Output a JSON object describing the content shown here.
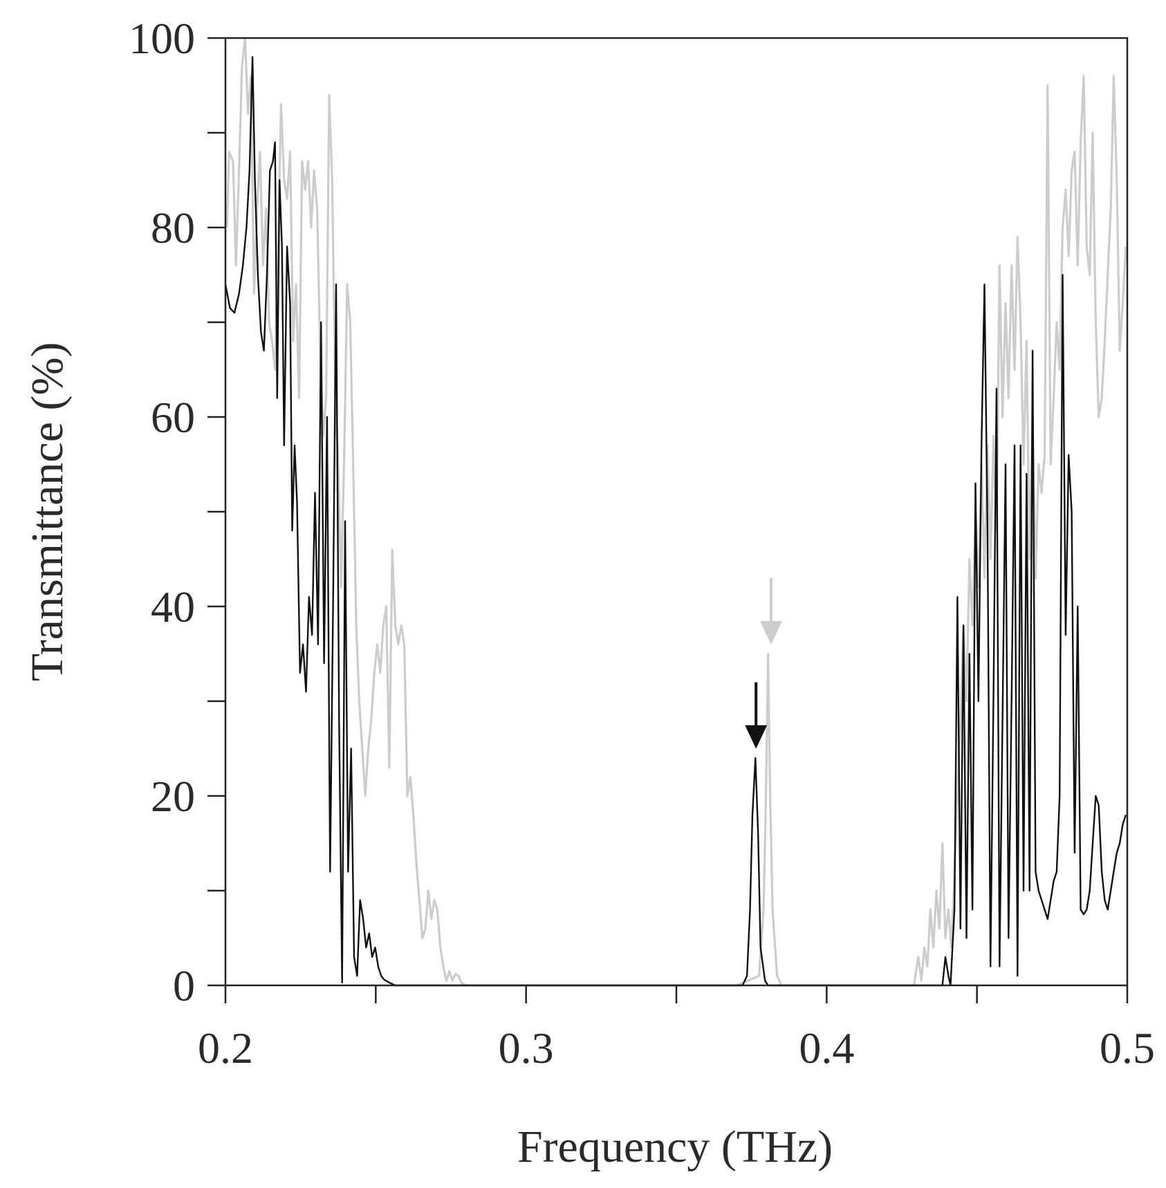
{
  "chart_data": {
    "type": "line",
    "xlabel": "Frequency (THz)",
    "ylabel": "Transmittance (%)",
    "xlim": [
      0.2,
      0.5
    ],
    "ylim": [
      0,
      100
    ],
    "x_ticks": [
      "0.2",
      "0.3",
      "0.4",
      "0.5"
    ],
    "x_tick_values": [
      0.2,
      0.3,
      0.4,
      0.5
    ],
    "x_minor_ticks": [
      0.25,
      0.35,
      0.45
    ],
    "y_ticks": [
      "0",
      "20",
      "40",
      "60",
      "80",
      "100"
    ],
    "y_tick_values": [
      0,
      20,
      40,
      60,
      80,
      100
    ],
    "y_minor_ticks": [
      10,
      30,
      50,
      70,
      90
    ],
    "grid": false,
    "legend": "none",
    "series": [
      {
        "color": "#cccccc",
        "points": [
          [
            0.2005,
            80.0
          ],
          [
            0.2012,
            88.0
          ],
          [
            0.2025,
            87.0
          ],
          [
            0.2035,
            76.0
          ],
          [
            0.2045,
            86.0
          ],
          [
            0.2055,
            97.0
          ],
          [
            0.2065,
            100.0
          ],
          [
            0.2075,
            92.0
          ],
          [
            0.2085,
            96.0
          ],
          [
            0.2095,
            73.0
          ],
          [
            0.2105,
            82.0
          ],
          [
            0.2115,
            88.0
          ],
          [
            0.2125,
            76.0
          ],
          [
            0.2135,
            82.0
          ],
          [
            0.2145,
            70.0
          ],
          [
            0.2155,
            68.0
          ],
          [
            0.2165,
            65.0
          ],
          [
            0.2175,
            78.0
          ],
          [
            0.2185,
            93.0
          ],
          [
            0.2195,
            85.0
          ],
          [
            0.2205,
            83.0
          ],
          [
            0.2215,
            88.0
          ],
          [
            0.2225,
            68.0
          ],
          [
            0.2235,
            74.0
          ],
          [
            0.2245,
            62.0
          ],
          [
            0.2255,
            87.0
          ],
          [
            0.2265,
            84.0
          ],
          [
            0.2275,
            87.0
          ],
          [
            0.2285,
            80.0
          ],
          [
            0.2295,
            86.0
          ],
          [
            0.2305,
            82.0
          ],
          [
            0.2315,
            67.0
          ],
          [
            0.2325,
            58.0
          ],
          [
            0.2335,
            62.0
          ],
          [
            0.2345,
            94.0
          ],
          [
            0.2355,
            85.0
          ],
          [
            0.2365,
            63.0
          ],
          [
            0.2375,
            55.0
          ],
          [
            0.2385,
            42.0
          ],
          [
            0.2395,
            56.0
          ],
          [
            0.2405,
            74.0
          ],
          [
            0.2415,
            70.0
          ],
          [
            0.2425,
            55.0
          ],
          [
            0.2435,
            38.0
          ],
          [
            0.2445,
            30.0
          ],
          [
            0.2455,
            25.0
          ],
          [
            0.2465,
            20.0
          ],
          [
            0.2475,
            25.0
          ],
          [
            0.2485,
            28.0
          ],
          [
            0.2495,
            33.0
          ],
          [
            0.2505,
            36.0
          ],
          [
            0.2515,
            33.0
          ],
          [
            0.2525,
            38.0
          ],
          [
            0.2535,
            40.0
          ],
          [
            0.2545,
            23.0
          ],
          [
            0.2555,
            46.0
          ],
          [
            0.2565,
            38.0
          ],
          [
            0.2575,
            36.0
          ],
          [
            0.2585,
            38.0
          ],
          [
            0.2595,
            36.0
          ],
          [
            0.2605,
            20.0
          ],
          [
            0.2615,
            22.0
          ],
          [
            0.2625,
            18.0
          ],
          [
            0.2635,
            13.0
          ],
          [
            0.2645,
            9.0
          ],
          [
            0.2655,
            5.0
          ],
          [
            0.2665,
            6.0
          ],
          [
            0.2675,
            10.0
          ],
          [
            0.2685,
            7.0
          ],
          [
            0.2695,
            9.0
          ],
          [
            0.2705,
            8.0
          ],
          [
            0.2715,
            4.0
          ],
          [
            0.2725,
            2.0
          ],
          [
            0.2735,
            0.5
          ],
          [
            0.2745,
            1.5
          ],
          [
            0.2755,
            0.5
          ],
          [
            0.2765,
            1.2
          ],
          [
            0.2775,
            1.0
          ],
          [
            0.2785,
            0.3
          ],
          [
            0.28,
            0.0
          ],
          [
            0.37,
            0.0
          ],
          [
            0.3775,
            1.0
          ],
          [
            0.379,
            8.0
          ],
          [
            0.3798,
            20.0
          ],
          [
            0.3805,
            35.0
          ],
          [
            0.3812,
            20.0
          ],
          [
            0.382,
            8.0
          ],
          [
            0.3835,
            1.0
          ],
          [
            0.385,
            0.0
          ],
          [
            0.429,
            0.0
          ],
          [
            0.4305,
            3.0
          ],
          [
            0.4315,
            0.5
          ],
          [
            0.4325,
            4.0
          ],
          [
            0.4335,
            2.0
          ],
          [
            0.4345,
            8.0
          ],
          [
            0.4355,
            4.0
          ],
          [
            0.4365,
            10.0
          ],
          [
            0.4375,
            6.0
          ],
          [
            0.4385,
            15.0
          ],
          [
            0.4395,
            5.0
          ],
          [
            0.4405,
            8.0
          ],
          [
            0.4415,
            4.0
          ],
          [
            0.4425,
            12.0
          ],
          [
            0.4435,
            20.0
          ],
          [
            0.4445,
            28.0
          ],
          [
            0.4455,
            38.0
          ],
          [
            0.4465,
            30.0
          ],
          [
            0.4475,
            45.0
          ],
          [
            0.4485,
            38.0
          ],
          [
            0.4495,
            50.0
          ],
          [
            0.4505,
            42.0
          ],
          [
            0.4515,
            55.0
          ],
          [
            0.4525,
            43.0
          ],
          [
            0.4535,
            57.0
          ],
          [
            0.4545,
            45.0
          ],
          [
            0.4555,
            58.0
          ],
          [
            0.4565,
            48.0
          ],
          [
            0.4575,
            76.0
          ],
          [
            0.4585,
            60.0
          ],
          [
            0.4595,
            72.0
          ],
          [
            0.4605,
            62.0
          ],
          [
            0.4615,
            76.0
          ],
          [
            0.4625,
            65.0
          ],
          [
            0.4635,
            79.0
          ],
          [
            0.4645,
            70.0
          ],
          [
            0.4655,
            55.0
          ],
          [
            0.4665,
            68.0
          ],
          [
            0.4675,
            45.0
          ],
          [
            0.4685,
            60.0
          ],
          [
            0.4695,
            43.0
          ],
          [
            0.4705,
            55.0
          ],
          [
            0.4715,
            52.0
          ],
          [
            0.4725,
            56.0
          ],
          [
            0.4735,
            95.0
          ],
          [
            0.4745,
            55.0
          ],
          [
            0.4755,
            62.0
          ],
          [
            0.4765,
            70.0
          ],
          [
            0.4775,
            65.0
          ],
          [
            0.4785,
            80.0
          ],
          [
            0.4795,
            84.0
          ],
          [
            0.4805,
            77.0
          ],
          [
            0.4815,
            86.0
          ],
          [
            0.4825,
            88.0
          ],
          [
            0.4835,
            76.0
          ],
          [
            0.4845,
            89.0
          ],
          [
            0.4855,
            96.0
          ],
          [
            0.4865,
            78.0
          ],
          [
            0.4875,
            75.0
          ],
          [
            0.4885,
            90.0
          ],
          [
            0.4895,
            70.0
          ],
          [
            0.4905,
            60.0
          ],
          [
            0.4915,
            62.0
          ],
          [
            0.4925,
            68.0
          ],
          [
            0.4935,
            75.0
          ],
          [
            0.4945,
            82.0
          ],
          [
            0.4955,
            96.0
          ],
          [
            0.4965,
            85.0
          ],
          [
            0.4975,
            67.0
          ],
          [
            0.4985,
            72.0
          ],
          [
            0.4995,
            78.0
          ]
        ]
      },
      {
        "color": "#111111",
        "points": [
          [
            0.2,
            74.0
          ],
          [
            0.2015,
            71.5
          ],
          [
            0.203,
            71.0
          ],
          [
            0.2045,
            73.0
          ],
          [
            0.2058,
            76.0
          ],
          [
            0.207,
            80.0
          ],
          [
            0.208,
            86.0
          ],
          [
            0.209,
            98.0
          ],
          [
            0.2098,
            85.0
          ],
          [
            0.2108,
            75.0
          ],
          [
            0.2118,
            69.0
          ],
          [
            0.2128,
            67.0
          ],
          [
            0.2138,
            75.0
          ],
          [
            0.2148,
            86.0
          ],
          [
            0.2158,
            87.0
          ],
          [
            0.2165,
            89.0
          ],
          [
            0.2172,
            62.0
          ],
          [
            0.218,
            85.0
          ],
          [
            0.2188,
            78.0
          ],
          [
            0.2195,
            57.0
          ],
          [
            0.2205,
            78.0
          ],
          [
            0.2215,
            72.0
          ],
          [
            0.2222,
            48.0
          ],
          [
            0.223,
            57.0
          ],
          [
            0.2238,
            51.0
          ],
          [
            0.2248,
            33.0
          ],
          [
            0.2258,
            36.0
          ],
          [
            0.2268,
            31.0
          ],
          [
            0.2278,
            41.0
          ],
          [
            0.2288,
            37.0
          ],
          [
            0.2298,
            52.0
          ],
          [
            0.2308,
            36.0
          ],
          [
            0.2318,
            70.0
          ],
          [
            0.2328,
            34.0
          ],
          [
            0.2338,
            60.0
          ],
          [
            0.2348,
            12.0
          ],
          [
            0.2358,
            40.0
          ],
          [
            0.2368,
            74.0
          ],
          [
            0.2378,
            28.0
          ],
          [
            0.2388,
            0.3
          ],
          [
            0.2398,
            49.0
          ],
          [
            0.2408,
            12.0
          ],
          [
            0.2418,
            25.0
          ],
          [
            0.2428,
            3.0
          ],
          [
            0.2438,
            1.0
          ],
          [
            0.2448,
            9.0
          ],
          [
            0.2458,
            7.0
          ],
          [
            0.2468,
            4.0
          ],
          [
            0.2478,
            5.5
          ],
          [
            0.2488,
            3.0
          ],
          [
            0.2498,
            4.0
          ],
          [
            0.2508,
            2.0
          ],
          [
            0.2518,
            1.0
          ],
          [
            0.2528,
            0.6
          ],
          [
            0.2545,
            0.3
          ],
          [
            0.2565,
            0.0
          ],
          [
            0.372,
            0.0
          ],
          [
            0.3735,
            1.0
          ],
          [
            0.3745,
            8.0
          ],
          [
            0.3753,
            18.0
          ],
          [
            0.3763,
            24.0
          ],
          [
            0.3772,
            16.0
          ],
          [
            0.378,
            4.0
          ],
          [
            0.3795,
            0.5
          ],
          [
            0.3805,
            0.0
          ],
          [
            0.4385,
            0.0
          ],
          [
            0.4395,
            3.0
          ],
          [
            0.4405,
            1.0
          ],
          [
            0.4412,
            0.0
          ],
          [
            0.4425,
            8.0
          ],
          [
            0.4435,
            41.0
          ],
          [
            0.4445,
            6.0
          ],
          [
            0.4455,
            38.0
          ],
          [
            0.4465,
            5.0
          ],
          [
            0.4475,
            35.0
          ],
          [
            0.4485,
            8.0
          ],
          [
            0.4495,
            53.0
          ],
          [
            0.4505,
            30.0
          ],
          [
            0.4515,
            57.0
          ],
          [
            0.4525,
            74.0
          ],
          [
            0.4535,
            48.0
          ],
          [
            0.4545,
            2.0
          ],
          [
            0.4555,
            31.0
          ],
          [
            0.4565,
            63.0
          ],
          [
            0.4575,
            2.0
          ],
          [
            0.4585,
            28.0
          ],
          [
            0.4595,
            55.0
          ],
          [
            0.4605,
            5.0
          ],
          [
            0.4615,
            30.0
          ],
          [
            0.4625,
            57.0
          ],
          [
            0.4635,
            1.0
          ],
          [
            0.4645,
            57.0
          ],
          [
            0.4655,
            10.0
          ],
          [
            0.4665,
            54.0
          ],
          [
            0.4675,
            10.0
          ],
          [
            0.4685,
            67.0
          ],
          [
            0.4695,
            12.0
          ],
          [
            0.4705,
            10.0
          ],
          [
            0.4715,
            9.0
          ],
          [
            0.4725,
            8.0
          ],
          [
            0.4735,
            7.0
          ],
          [
            0.4745,
            9.0
          ],
          [
            0.4755,
            11.0
          ],
          [
            0.4765,
            12.0
          ],
          [
            0.4775,
            20.0
          ],
          [
            0.4785,
            75.0
          ],
          [
            0.4795,
            37.0
          ],
          [
            0.4805,
            56.0
          ],
          [
            0.4815,
            50.0
          ],
          [
            0.4825,
            14.0
          ],
          [
            0.4835,
            40.0
          ],
          [
            0.4845,
            8.0
          ],
          [
            0.4855,
            7.5
          ],
          [
            0.4865,
            8.0
          ],
          [
            0.4875,
            10.0
          ],
          [
            0.4885,
            15.0
          ],
          [
            0.4895,
            20.0
          ],
          [
            0.4905,
            19.0
          ],
          [
            0.4915,
            12.0
          ],
          [
            0.4925,
            9.0
          ],
          [
            0.4935,
            8.0
          ],
          [
            0.4945,
            10.0
          ],
          [
            0.4955,
            12.0
          ],
          [
            0.4965,
            14.0
          ],
          [
            0.4975,
            15.0
          ],
          [
            0.4985,
            17.0
          ],
          [
            0.4995,
            18.0
          ]
        ]
      }
    ],
    "annotations": [
      {
        "type": "arrow",
        "x": 0.3765,
        "y_from": 32,
        "y_to": 26,
        "color": "#111111"
      },
      {
        "type": "arrow",
        "x": 0.3815,
        "y_from": 43,
        "y_to": 37,
        "color": "#cccccc"
      }
    ]
  }
}
